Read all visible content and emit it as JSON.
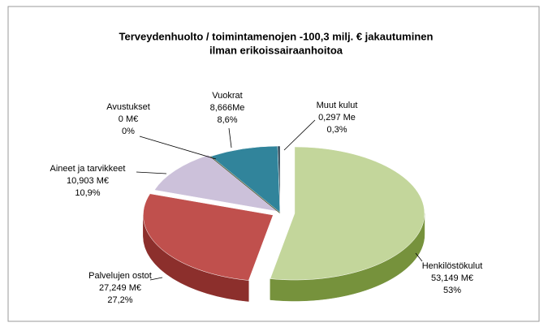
{
  "chart_data": {
    "type": "pie3d",
    "title": [
      "Terveydenhuolto /  toimintamenojen -100,3 milj. € jakautuminen",
      "ilman erikoissairaanhoitoa"
    ],
    "categories": [
      "Henkilöstökulut",
      "Palvelujen ostot",
      "Aineet ja tarvikkeet",
      "Avustukset",
      "Vuokrat",
      "Muut kulut"
    ],
    "values": [
      53.149,
      27.249,
      10.903,
      0,
      8.666,
      0.297
    ],
    "value_labels": [
      "53,149 M€",
      "27,249 M€",
      "10,903 M€",
      "0 M€",
      "8,666Me",
      "0,297 Me"
    ],
    "percents": [
      53,
      27.2,
      10.9,
      0,
      8.6,
      0.3
    ],
    "percent_labels": [
      "53%",
      "27,2%",
      "10,9%",
      "0%",
      "8,6%",
      "0,3%"
    ],
    "colors": [
      "#c3d69b",
      "#c0504d",
      "#ccc1da",
      "#4f6228",
      "#31849b",
      "#1f3b4d"
    ],
    "side_colors": [
      "#76923c",
      "#8c2f2c",
      "#8f80a8",
      "#3a481d",
      "#215d6e",
      "#10202b"
    ]
  }
}
